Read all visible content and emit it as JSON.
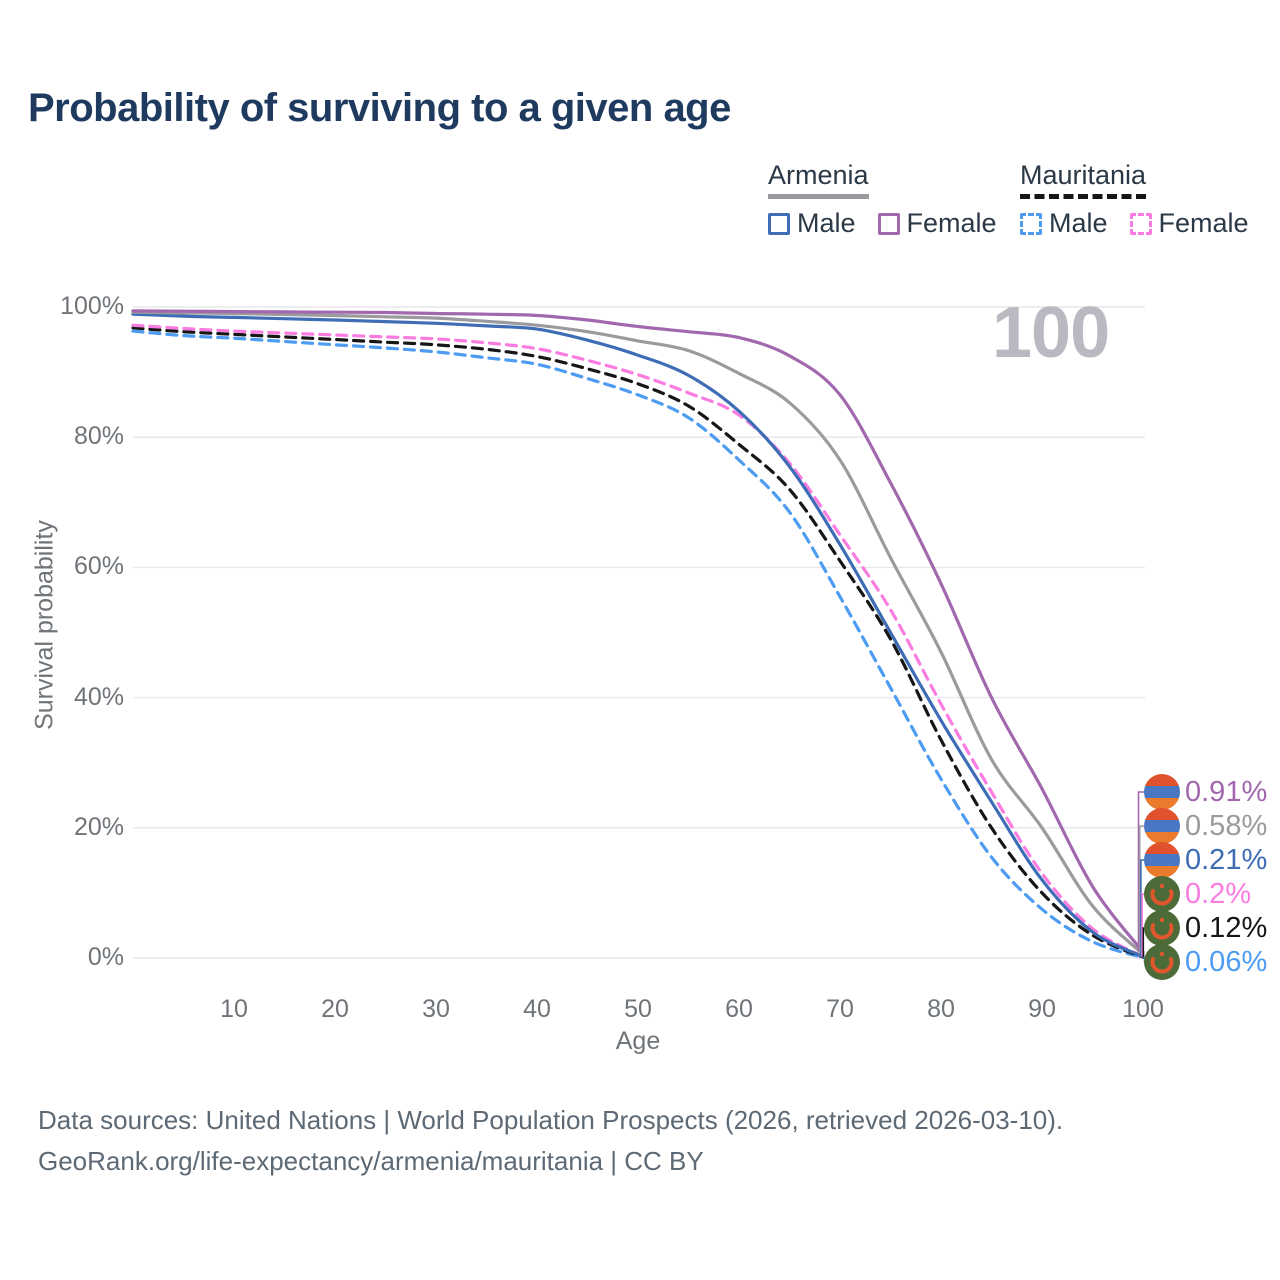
{
  "title": {
    "text": "Probability of surviving to a given age",
    "color": "#1e3a5f"
  },
  "watermark": {
    "text": "100",
    "color": "#b9b9c1"
  },
  "legend": {
    "groups": [
      {
        "label": "Armenia",
        "underline_style": "solid",
        "underline_color": "#9b9b9f",
        "items": [
          {
            "label": "Male",
            "color": "#3e6db5",
            "dashed": false
          },
          {
            "label": "Female",
            "color": "#a268ae",
            "dashed": false
          }
        ]
      },
      {
        "label": "Mauritania",
        "underline_style": "dashed",
        "underline_color": "#161616",
        "items": [
          {
            "label": "Male",
            "color": "#4d9cf2",
            "dashed": true
          },
          {
            "label": "Female",
            "color": "#fb7ce1",
            "dashed": true
          }
        ]
      }
    ]
  },
  "chart_data": {
    "type": "line",
    "title": "Probability of surviving to a given age",
    "xlabel": "Age",
    "ylabel": "Survival probability",
    "xlim": [
      0,
      100
    ],
    "ylim": [
      0,
      100
    ],
    "grid": "horizontal",
    "x_ticks": [
      10,
      20,
      30,
      40,
      50,
      60,
      70,
      80,
      90,
      100
    ],
    "y_ticks": [
      {
        "value": 0,
        "label": "0%"
      },
      {
        "value": 20,
        "label": "20%"
      },
      {
        "value": 40,
        "label": "40%"
      },
      {
        "value": 60,
        "label": "60%"
      },
      {
        "value": 80,
        "label": "80%"
      },
      {
        "value": 100,
        "label": "100%"
      }
    ],
    "x": [
      0,
      5,
      10,
      15,
      20,
      25,
      30,
      35,
      40,
      45,
      50,
      55,
      60,
      65,
      70,
      75,
      80,
      85,
      90,
      95,
      100
    ],
    "series": [
      {
        "name": "Armenia Female",
        "country": "armenia",
        "sex": "female",
        "color": "#a268ae",
        "dashed": false,
        "end_label": "0.91%",
        "values": [
          99.4,
          99.35,
          99.3,
          99.25,
          99.2,
          99.15,
          99.0,
          98.9,
          98.7,
          98.0,
          97.0,
          96.2,
          95.3,
          92.5,
          86.5,
          73.0,
          57.5,
          40.0,
          26.0,
          11.0,
          0.91
        ]
      },
      {
        "name": "Armenia Both sexes",
        "country": "armenia",
        "sex": "both",
        "color": "#9b9b9f",
        "dashed": false,
        "end_label": "0.58%",
        "values": [
          99.2,
          99.1,
          99.0,
          98.85,
          98.7,
          98.5,
          98.3,
          97.8,
          97.2,
          96.2,
          94.8,
          93.3,
          89.8,
          85.3,
          76.5,
          61.5,
          47.0,
          30.5,
          20.0,
          8.0,
          0.58
        ]
      },
      {
        "name": "Armenia Male",
        "country": "armenia",
        "sex": "male",
        "color": "#3e6db5",
        "dashed": false,
        "end_label": "0.21%",
        "values": [
          98.9,
          98.6,
          98.4,
          98.2,
          98.0,
          97.75,
          97.5,
          97.1,
          96.6,
          94.9,
          92.6,
          89.5,
          84.0,
          75.5,
          63.5,
          50.0,
          36.5,
          24.0,
          12.0,
          4.0,
          0.21
        ]
      },
      {
        "name": "Mauritania Female",
        "country": "mauritania",
        "sex": "female",
        "color": "#fb7ce1",
        "dashed": true,
        "end_label": "0.2%",
        "values": [
          97.2,
          96.7,
          96.3,
          96.0,
          95.7,
          95.4,
          95.1,
          94.5,
          93.6,
          91.8,
          89.6,
          86.8,
          83.4,
          76.0,
          65.0,
          53.5,
          39.0,
          25.5,
          13.0,
          4.5,
          0.2
        ]
      },
      {
        "name": "Mauritania Both sexes",
        "country": "mauritania",
        "sex": "both",
        "color": "#161616",
        "dashed": true,
        "end_label": "0.12%",
        "values": [
          96.8,
          96.2,
          95.8,
          95.4,
          95.0,
          94.6,
          94.2,
          93.5,
          92.4,
          90.5,
          88.2,
          84.8,
          78.9,
          72.0,
          61.0,
          49.0,
          33.5,
          20.0,
          10.0,
          3.5,
          0.12
        ]
      },
      {
        "name": "Mauritania Male",
        "country": "mauritania",
        "sex": "male",
        "color": "#4d9cf2",
        "dashed": true,
        "end_label": "0.06%",
        "values": [
          96.3,
          95.6,
          95.2,
          94.7,
          94.2,
          93.7,
          93.1,
          92.2,
          91.2,
          89.0,
          86.5,
          83.0,
          76.5,
          68.5,
          55.5,
          41.5,
          27.5,
          15.5,
          7.5,
          2.5,
          0.06
        ]
      }
    ],
    "flag_colors": {
      "armenia": [
        "#e0512d",
        "#4a77c4",
        "#ea7a2c"
      ],
      "mauritania": {
        "field": "#4d6b38",
        "crescent": "#e0572e"
      }
    }
  },
  "footer": {
    "line1": "Data sources: United Nations | World Population Prospects (2026, retrieved 2026-03-10).",
    "line2": "GeoRank.org/life-expectancy/armenia/mauritania | CC BY"
  }
}
